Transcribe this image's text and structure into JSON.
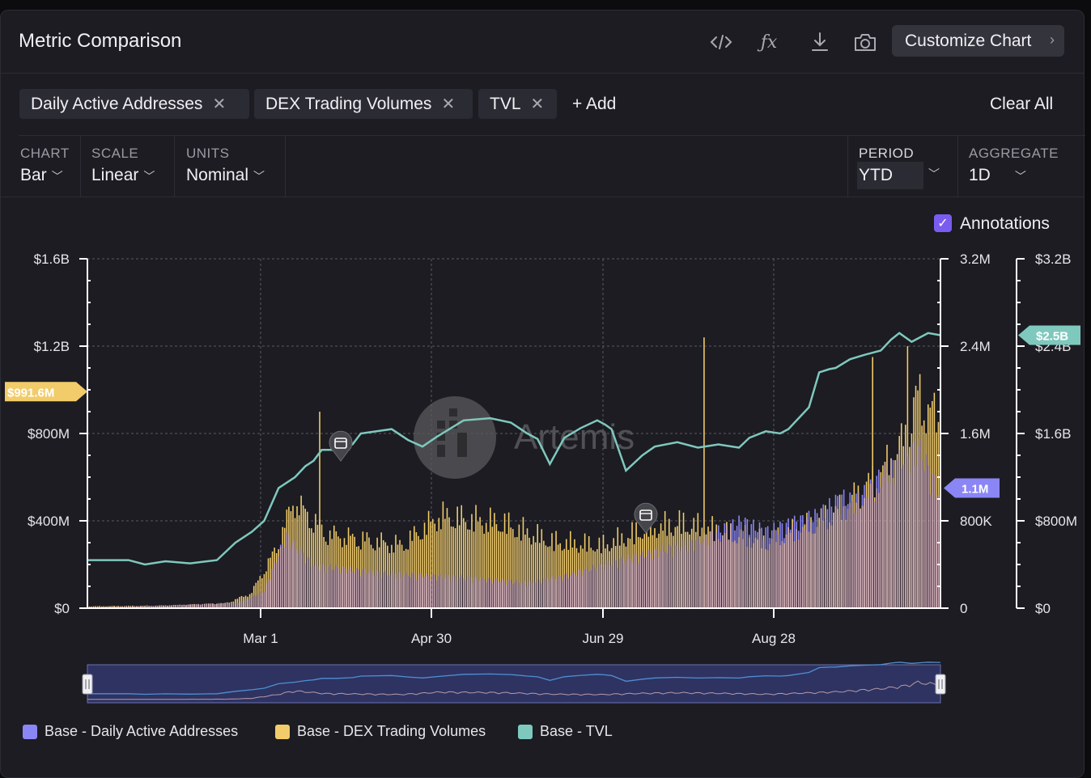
{
  "header": {
    "title": "Metric Comparison",
    "icons": [
      "code-icon",
      "function-icon",
      "download-icon",
      "camera-icon"
    ],
    "customize_label": "Customize Chart"
  },
  "metrics": {
    "chips": [
      {
        "label": "Daily Active Addresses"
      },
      {
        "label": "DEX Trading Volumes"
      },
      {
        "label": "TVL"
      }
    ],
    "add_label": "+ Add",
    "clear_label": "Clear All"
  },
  "controls": {
    "chart": {
      "label": "CHART",
      "value": "Bar"
    },
    "scale": {
      "label": "SCALE",
      "value": "Linear"
    },
    "units": {
      "label": "UNITS",
      "value": "Nominal"
    },
    "period": {
      "label": "PERIOD",
      "value": "YTD"
    },
    "aggregate": {
      "label": "AGGREGATE",
      "value": "1D"
    }
  },
  "annotations": {
    "label": "Annotations",
    "checked": true
  },
  "watermark": "Artemis",
  "colors": {
    "daa": "#8b86f5",
    "dex": "#f2cc6b",
    "tvl": "#7fc8bd",
    "pink": "#c9a6b4"
  },
  "chart_data": {
    "type": "bar",
    "x_ticks": [
      "Mar 1",
      "Apr 30",
      "Jun 29",
      "Aug 28"
    ],
    "y_left": {
      "ticks": [
        "$1.6B",
        "$1.2B",
        "$800M",
        "$400M",
        "$0"
      ],
      "range": [
        0,
        1600000000
      ]
    },
    "y_mid": {
      "ticks": [
        "3.2M",
        "2.4M",
        "1.6M",
        "800K",
        "0"
      ],
      "range": [
        0,
        3200000
      ]
    },
    "y_right": {
      "ticks": [
        "$3.2B",
        "$2.4B",
        "$1.6B",
        "$800M",
        "$0"
      ],
      "range": [
        0,
        3200000000
      ]
    },
    "last_value_labels": {
      "dex": "$991.6M",
      "daa": "1.1M",
      "tvl": "$2.5B"
    },
    "series": [
      {
        "name": "Base - Daily Active Addresses",
        "axis": "mid",
        "type": "bar",
        "knots": [
          [
            0,
            10000
          ],
          [
            30,
            25000
          ],
          [
            60,
            55000
          ],
          [
            70,
            160000
          ],
          [
            79,
            720000
          ],
          [
            90,
            420000
          ],
          [
            120,
            340000
          ],
          [
            150,
            300000
          ],
          [
            175,
            250000
          ],
          [
            190,
            320000
          ],
          [
            210,
            460000
          ],
          [
            240,
            640000
          ],
          [
            260,
            860000
          ],
          [
            270,
            760000
          ],
          [
            290,
            920000
          ],
          [
            300,
            1100000
          ],
          [
            304,
            1050000
          ],
          [
            310,
            1150000
          ],
          [
            315,
            1300000
          ],
          [
            320,
            1400000
          ],
          [
            330,
            1600000
          ],
          [
            339,
            1100000
          ]
        ]
      },
      {
        "name": "Base - DEX Trading Volumes",
        "axis": "left",
        "type": "bar",
        "knots": [
          [
            0,
            10000000
          ],
          [
            30,
            14000000
          ],
          [
            55,
            26000000
          ],
          [
            65,
            80000000
          ],
          [
            75,
            320000000
          ],
          [
            82,
            580000000
          ],
          [
            95,
            400000000
          ],
          [
            125,
            340000000
          ],
          [
            140,
            500000000
          ],
          [
            165,
            460000000
          ],
          [
            185,
            360000000
          ],
          [
            205,
            340000000
          ],
          [
            220,
            420000000
          ],
          [
            235,
            460000000
          ],
          [
            250,
            420000000
          ],
          [
            270,
            360000000
          ],
          [
            290,
            470000000
          ],
          [
            300,
            540000000
          ],
          [
            315,
            720000000
          ],
          [
            325,
            920000000
          ],
          [
            330,
            1150000000
          ],
          [
            339,
            991600000
          ]
        ]
      },
      {
        "name": "Base - TVL",
        "axis": "right",
        "type": "line",
        "knots": [
          [
            0,
            440000000
          ],
          [
            20,
            440000000
          ],
          [
            28,
            400000000
          ],
          [
            38,
            430000000
          ],
          [
            50,
            410000000
          ],
          [
            63,
            440000000
          ],
          [
            72,
            600000000
          ],
          [
            80,
            700000000
          ],
          [
            86,
            800000000
          ],
          [
            93,
            1100000000
          ],
          [
            101,
            1200000000
          ],
          [
            106,
            1300000000
          ],
          [
            110,
            1350000000
          ],
          [
            114,
            1450000000
          ],
          [
            121,
            1450000000
          ],
          [
            129,
            1500000000
          ],
          [
            133,
            1600000000
          ],
          [
            148,
            1640000000
          ],
          [
            156,
            1540000000
          ],
          [
            163,
            1480000000
          ],
          [
            170,
            1570000000
          ],
          [
            183,
            1720000000
          ],
          [
            196,
            1740000000
          ],
          [
            206,
            1700000000
          ],
          [
            214,
            1600000000
          ],
          [
            219,
            1550000000
          ],
          [
            225,
            1320000000
          ],
          [
            232,
            1560000000
          ],
          [
            240,
            1650000000
          ],
          [
            248,
            1720000000
          ],
          [
            252,
            1680000000
          ],
          [
            255,
            1640000000
          ],
          [
            262,
            1260000000
          ],
          [
            270,
            1400000000
          ],
          [
            276,
            1480000000
          ],
          [
            287,
            1520000000
          ],
          [
            297,
            1470000000
          ],
          [
            307,
            1500000000
          ],
          [
            317,
            1470000000
          ],
          [
            322,
            1560000000
          ],
          [
            330,
            1620000000
          ],
          [
            337,
            1600000000
          ],
          [
            341,
            1640000000
          ],
          [
            351,
            1840000000
          ],
          [
            356,
            2160000000
          ],
          [
            361,
            2190000000
          ],
          [
            364,
            2200000000
          ],
          [
            371,
            2280000000
          ],
          [
            378,
            2320000000
          ],
          [
            386,
            2360000000
          ],
          [
            391,
            2460000000
          ],
          [
            395,
            2520000000
          ],
          [
            401,
            2440000000
          ],
          [
            409,
            2520000000
          ],
          [
            415,
            2500000000
          ]
        ]
      }
    ],
    "legend": [
      "Base - Daily Active Addresses",
      "Base - DEX Trading Volumes",
      "Base - TVL"
    ]
  }
}
